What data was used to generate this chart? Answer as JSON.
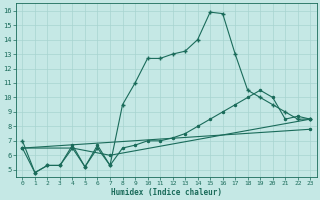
{
  "xlabel": "Humidex (Indice chaleur)",
  "xlim": [
    -0.5,
    23.5
  ],
  "ylim": [
    4.5,
    16.5
  ],
  "xticks": [
    0,
    1,
    2,
    3,
    4,
    5,
    6,
    7,
    8,
    9,
    10,
    11,
    12,
    13,
    14,
    15,
    16,
    17,
    18,
    19,
    20,
    21,
    22,
    23
  ],
  "yticks": [
    5,
    6,
    7,
    8,
    9,
    10,
    11,
    12,
    13,
    14,
    15,
    16
  ],
  "bg_color": "#c5e8e5",
  "grid_color": "#a8d4d0",
  "line_color": "#1a6b5a",
  "line1_x": [
    0,
    1,
    2,
    3,
    4,
    5,
    6,
    7,
    8,
    9,
    10,
    11,
    12,
    13,
    14,
    15,
    16,
    17,
    18,
    19,
    20,
    21,
    22,
    23
  ],
  "line1_y": [
    7.0,
    4.8,
    5.3,
    5.3,
    6.5,
    5.2,
    6.5,
    5.3,
    9.5,
    11.0,
    12.7,
    12.7,
    13.0,
    13.2,
    14.0,
    15.9,
    15.8,
    13.0,
    10.5,
    10.0,
    9.5,
    9.0,
    8.5,
    8.5
  ],
  "line2_x": [
    0,
    1,
    2,
    3,
    4,
    5,
    6,
    7,
    8,
    9,
    10,
    11,
    12,
    13,
    14,
    15,
    16,
    17,
    18,
    19,
    20,
    21,
    22,
    23
  ],
  "line2_y": [
    6.5,
    4.8,
    5.3,
    5.3,
    6.7,
    5.2,
    6.7,
    5.3,
    6.5,
    6.7,
    7.0,
    7.0,
    7.2,
    7.5,
    8.0,
    8.5,
    9.0,
    9.5,
    10.0,
    10.5,
    10.0,
    8.5,
    8.7,
    8.5
  ],
  "line3_x": [
    0,
    4,
    7,
    23
  ],
  "line3_y": [
    6.5,
    6.5,
    6.0,
    8.5
  ],
  "line4_x": [
    0,
    23
  ],
  "line4_y": [
    6.5,
    7.8
  ]
}
